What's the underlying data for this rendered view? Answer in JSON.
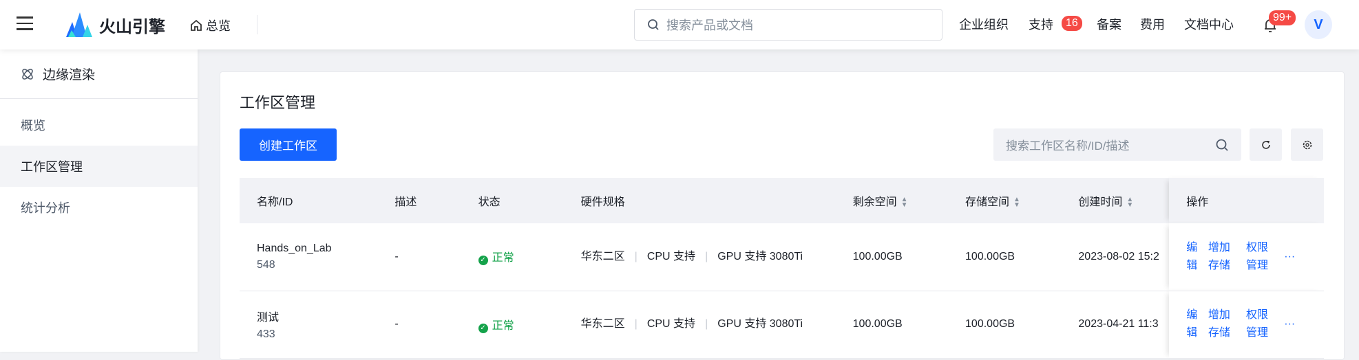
{
  "header": {
    "brand": "火山引擎",
    "home": "总览",
    "search_placeholder": "搜索产品或文档",
    "nav": [
      "企业组织",
      "支持",
      "备案",
      "费用",
      "文档中心"
    ],
    "support_badge": "16",
    "notif_badge": "99+",
    "avatar": "V"
  },
  "sidebar": {
    "title": "边缘渲染",
    "items": [
      {
        "label": "概览"
      },
      {
        "label": "工作区管理",
        "active": true
      },
      {
        "label": "统计分析"
      }
    ]
  },
  "main": {
    "title": "工作区管理",
    "create_label": "创建工作区",
    "search_placeholder": "搜索工作区名称/ID/描述",
    "columns": [
      "名称/ID",
      "描述",
      "状态",
      "硬件规格",
      "剩余空间",
      "存储空间",
      "创建时间",
      "操作"
    ],
    "rows": [
      {
        "name": "Hands_on_Lab",
        "id": "548",
        "desc": "-",
        "status": "正常",
        "region": "华东二区",
        "cpu": "CPU 支持",
        "gpu": "GPU 支持 3080Ti",
        "free": "100.00GB",
        "storage": "100.00GB",
        "created": "2023-08-02 15:2"
      },
      {
        "name": "测试",
        "id": "433",
        "desc": "-",
        "status": "正常",
        "region": "华东二区",
        "cpu": "CPU 支持",
        "gpu": "GPU 支持 3080Ti",
        "free": "100.00GB",
        "storage": "100.00GB",
        "created": "2023-04-21 11:3"
      }
    ],
    "actions": {
      "edit": "编辑",
      "add_storage": "增加存储",
      "permissions": "权限管理",
      "more": "···"
    }
  },
  "colors": {
    "primary": "#1664ff",
    "success": "#14a24a",
    "badge": "#f54a45"
  }
}
